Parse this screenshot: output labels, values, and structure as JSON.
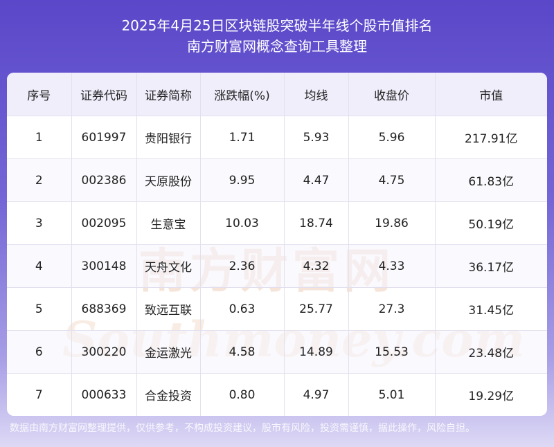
{
  "header": {
    "title_line1": "2025年4月25日区块链股突破半年线个股市值排名",
    "title_line2": "南方财富网概念查询工具整理"
  },
  "table": {
    "columns": [
      "序号",
      "证券代码",
      "证券简称",
      "涨跌幅(%)",
      "均线",
      "收盘价",
      "市值"
    ],
    "rows": [
      [
        "1",
        "601997",
        "贵阳银行",
        "1.71",
        "5.93",
        "5.96",
        "217.91亿"
      ],
      [
        "2",
        "002386",
        "天原股份",
        "9.95",
        "4.47",
        "4.75",
        "61.83亿"
      ],
      [
        "3",
        "002095",
        "生意宝",
        "10.03",
        "18.74",
        "19.86",
        "50.19亿"
      ],
      [
        "4",
        "300148",
        "天舟文化",
        "2.36",
        "4.32",
        "4.33",
        "36.17亿"
      ],
      [
        "5",
        "688369",
        "致远互联",
        "0.63",
        "25.77",
        "27.3",
        "31.45亿"
      ],
      [
        "6",
        "300220",
        "金运激光",
        "4.58",
        "14.89",
        "15.53",
        "23.48亿"
      ],
      [
        "7",
        "000633",
        "合金投资",
        "0.80",
        "4.97",
        "5.01",
        "19.29亿"
      ]
    ]
  },
  "watermark": {
    "text_cn": "南方财富网",
    "text_en": "Southmoney.com"
  },
  "footer": {
    "disclaimer": "数据由南方财富网整理提供，仅供参考，不构成投资建议，股市有风险，投资需谨慎，据此操作，风险自担。"
  },
  "colors": {
    "header_bg": "#5a47c9",
    "table_header_bg": "#f0eefb",
    "watermark": "#f3d9c8"
  }
}
